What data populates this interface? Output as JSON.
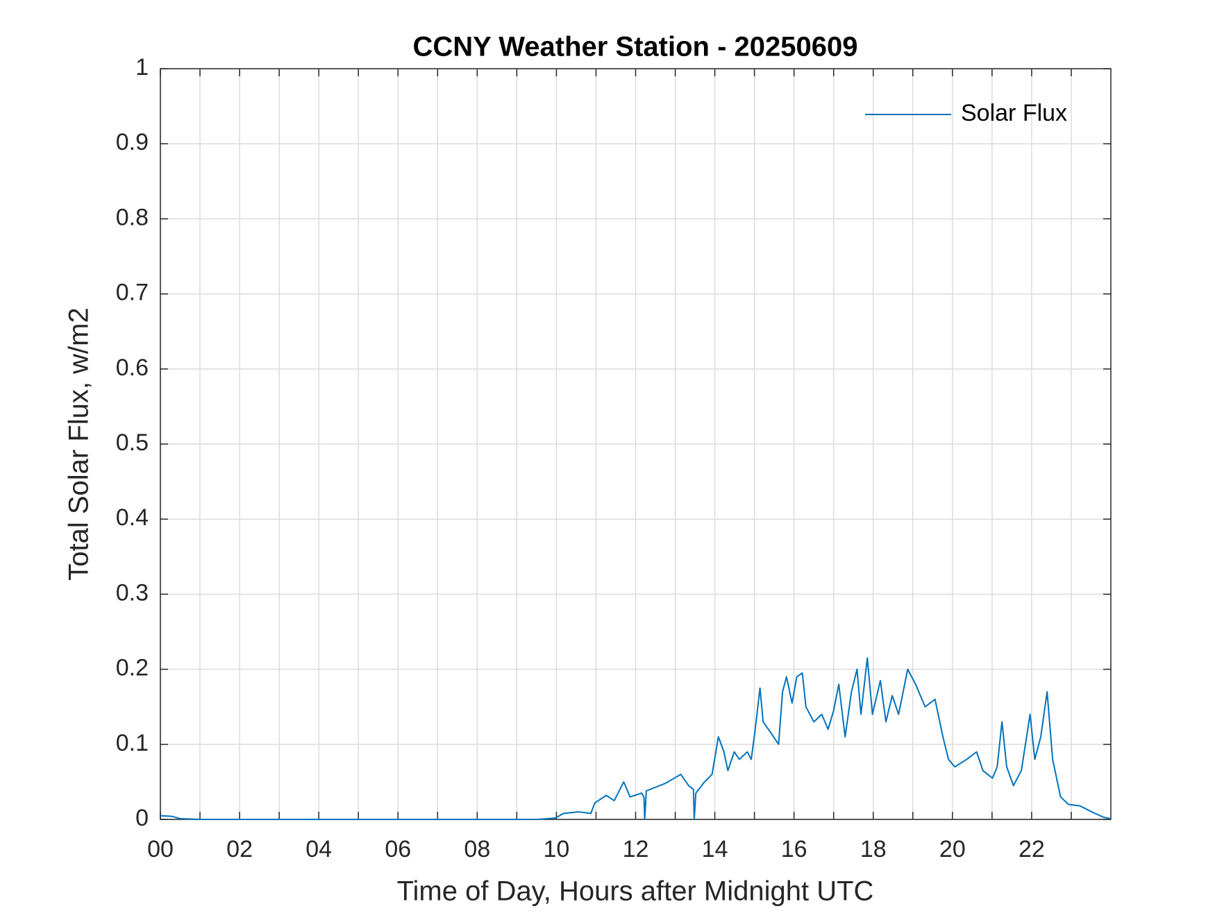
{
  "chart_data": {
    "type": "line",
    "title": "CCNY Weather Station - 20250609",
    "x_label": "Time of Day, Hours after Midnight UTC",
    "y_label": "Total Solar Flux, w/m2",
    "xlim": [
      0,
      24
    ],
    "ylim": [
      0,
      1
    ],
    "xticks": [
      {
        "value": 0,
        "label": "00"
      },
      {
        "value": 2,
        "label": "02"
      },
      {
        "value": 4,
        "label": "04"
      },
      {
        "value": 6,
        "label": "06"
      },
      {
        "value": 8,
        "label": "08"
      },
      {
        "value": 10,
        "label": "10"
      },
      {
        "value": 12,
        "label": "12"
      },
      {
        "value": 14,
        "label": "14"
      },
      {
        "value": 16,
        "label": "16"
      },
      {
        "value": 18,
        "label": "18"
      },
      {
        "value": 20,
        "label": "20"
      },
      {
        "value": 22,
        "label": "22"
      }
    ],
    "x_minor_ticks": [
      1,
      3,
      5,
      7,
      9,
      11,
      13,
      15,
      17,
      19,
      21,
      23
    ],
    "yticks": [
      0,
      0.1,
      0.2,
      0.3,
      0.4,
      0.5,
      0.6,
      0.7,
      0.8,
      0.9,
      1
    ],
    "grid": true,
    "legend_position": "upper-right",
    "x": [
      0,
      0.3,
      0.5,
      1,
      9.5,
      9.8,
      9.98,
      10.18,
      10.57,
      10.87,
      10.97,
      11.26,
      11.46,
      11.7,
      11.86,
      12.15,
      12.21,
      12.23,
      12.27,
      12.75,
      13.14,
      13.34,
      13.46,
      13.48,
      13.52,
      13.74,
      13.93,
      14.09,
      14.23,
      14.33,
      14.49,
      14.62,
      14.82,
      14.92,
      15.02,
      15.14,
      15.22,
      15.42,
      15.61,
      15.71,
      15.81,
      15.95,
      16.07,
      16.21,
      16.3,
      16.5,
      16.7,
      16.86,
      17.0,
      17.13,
      17.29,
      17.45,
      17.59,
      17.69,
      17.85,
      17.98,
      18.18,
      18.32,
      18.48,
      18.64,
      18.87,
      19.07,
      19.31,
      19.56,
      19.76,
      19.9,
      20.06,
      20.36,
      20.61,
      20.77,
      21.01,
      21.13,
      21.25,
      21.37,
      21.54,
      21.74,
      21.96,
      22.08,
      22.23,
      22.39,
      22.53,
      22.73,
      22.93,
      23.22,
      23.52,
      23.81,
      24.0
    ],
    "series": [
      {
        "name": "Solar Flux",
        "color": "#0072bd",
        "values": [
          0.005,
          0.004,
          0.001,
          0,
          0,
          0.001,
          0.002,
          0.008,
          0.01,
          0.008,
          0.022,
          0.032,
          0.025,
          0.05,
          0.03,
          0.035,
          0.03,
          0,
          0.038,
          0.048,
          0.06,
          0.045,
          0.04,
          0,
          0.035,
          0.05,
          0.06,
          0.11,
          0.09,
          0.065,
          0.09,
          0.08,
          0.09,
          0.08,
          0.12,
          0.175,
          0.13,
          0.115,
          0.1,
          0.17,
          0.19,
          0.155,
          0.19,
          0.195,
          0.15,
          0.13,
          0.14,
          0.12,
          0.145,
          0.18,
          0.11,
          0.17,
          0.2,
          0.14,
          0.215,
          0.14,
          0.185,
          0.13,
          0.165,
          0.14,
          0.2,
          0.18,
          0.15,
          0.16,
          0.11,
          0.08,
          0.07,
          0.08,
          0.09,
          0.065,
          0.055,
          0.07,
          0.13,
          0.07,
          0.045,
          0.065,
          0.14,
          0.08,
          0.11,
          0.17,
          0.08,
          0.03,
          0.02,
          0.018,
          0.01,
          0.003,
          0.001
        ]
      }
    ]
  }
}
